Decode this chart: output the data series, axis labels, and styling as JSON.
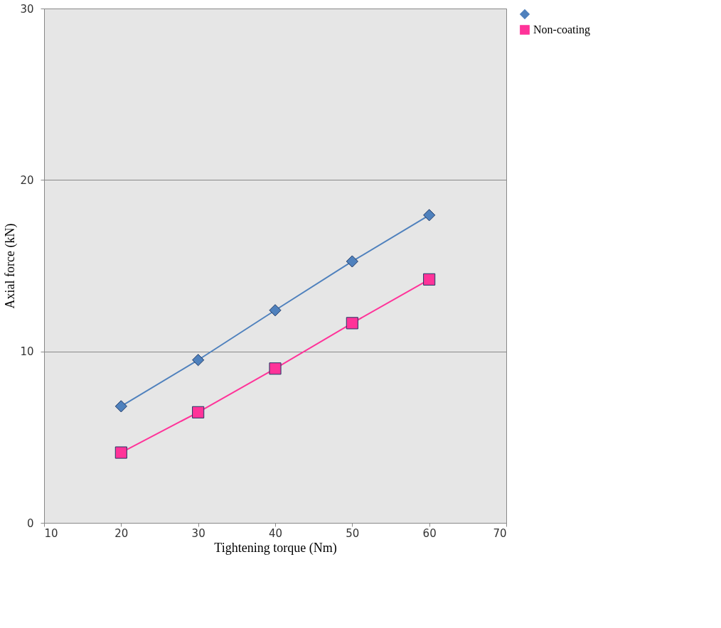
{
  "chart_data": {
    "type": "line",
    "xlabel": "Tightening torque (Nm)",
    "ylabel": "Axial force (kN)",
    "x": [
      20,
      30,
      40,
      50,
      60
    ],
    "series": [
      {
        "color": "#4f81bd",
        "values": [
          6.8,
          9.5,
          12.4,
          15.25,
          17.95
        ],
        "marker": "diamond"
      },
      {
        "name": "Non-coating",
        "color": "#ff3399",
        "values": [
          4.1,
          6.45,
          9.0,
          11.65,
          14.2
        ],
        "marker": "square"
      }
    ],
    "xlim": [
      10,
      70
    ],
    "xticks": [
      10,
      20,
      30,
      40,
      50,
      60,
      70
    ],
    "ylim": [
      0,
      30
    ],
    "yticks": [
      0,
      10,
      20,
      30
    ],
    "grid": "y",
    "legend": "right"
  }
}
